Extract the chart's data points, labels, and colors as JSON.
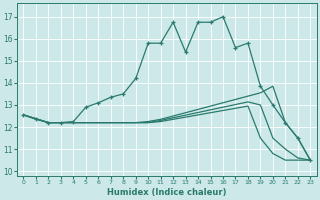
{
  "xlabel": "Humidex (Indice chaleur)",
  "xlim": [
    -0.5,
    23.5
  ],
  "ylim": [
    9.8,
    17.6
  ],
  "xticks": [
    0,
    1,
    2,
    3,
    4,
    5,
    6,
    7,
    8,
    9,
    10,
    11,
    12,
    13,
    14,
    15,
    16,
    17,
    18,
    19,
    20,
    21,
    22,
    23
  ],
  "yticks": [
    10,
    11,
    12,
    13,
    14,
    15,
    16,
    17
  ],
  "bg_color": "#cce8e8",
  "line_color": "#2a7a6e",
  "lines": [
    {
      "x": [
        0,
        1,
        2,
        3,
        4,
        5,
        6,
        7,
        8,
        9,
        10,
        11,
        12,
        13,
        14,
        15,
        16,
        17,
        18,
        19,
        20,
        21,
        22,
        23
      ],
      "y": [
        12.55,
        12.35,
        12.2,
        12.2,
        12.25,
        12.9,
        13.1,
        13.35,
        13.5,
        14.2,
        15.8,
        15.8,
        16.75,
        15.4,
        16.75,
        16.75,
        17.0,
        15.6,
        15.8,
        13.85,
        13.0,
        12.2,
        11.5,
        10.5
      ],
      "marker": true
    },
    {
      "x": [
        0,
        2,
        3,
        4,
        5,
        6,
        7,
        8,
        9,
        10,
        11,
        12,
        13,
        14,
        15,
        16,
        17,
        18,
        19,
        20,
        21,
        22,
        23
      ],
      "y": [
        12.55,
        12.2,
        12.2,
        12.2,
        12.2,
        12.2,
        12.2,
        12.2,
        12.2,
        12.25,
        12.35,
        12.5,
        12.65,
        12.8,
        12.95,
        13.1,
        13.25,
        13.4,
        13.55,
        13.85,
        12.2,
        11.5,
        10.5
      ],
      "marker": false
    },
    {
      "x": [
        0,
        2,
        3,
        4,
        5,
        6,
        7,
        8,
        9,
        10,
        11,
        12,
        13,
        14,
        15,
        16,
        17,
        18,
        19,
        20,
        21,
        22,
        23
      ],
      "y": [
        12.55,
        12.2,
        12.2,
        12.2,
        12.2,
        12.2,
        12.2,
        12.2,
        12.2,
        12.2,
        12.3,
        12.42,
        12.54,
        12.66,
        12.78,
        12.9,
        13.02,
        13.14,
        13.0,
        11.5,
        11.0,
        10.6,
        10.5
      ],
      "marker": false
    },
    {
      "x": [
        0,
        2,
        3,
        4,
        5,
        6,
        7,
        8,
        9,
        10,
        11,
        12,
        13,
        14,
        15,
        16,
        17,
        18,
        19,
        20,
        21,
        22,
        23
      ],
      "y": [
        12.55,
        12.2,
        12.2,
        12.2,
        12.2,
        12.2,
        12.2,
        12.2,
        12.2,
        12.2,
        12.25,
        12.35,
        12.45,
        12.55,
        12.65,
        12.75,
        12.85,
        12.95,
        11.5,
        10.8,
        10.5,
        10.5,
        10.5
      ],
      "marker": false
    }
  ]
}
